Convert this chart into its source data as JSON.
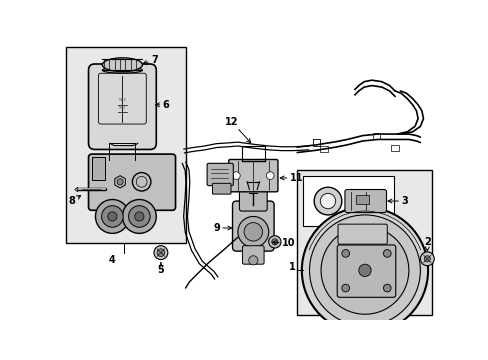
{
  "bg": "#ffffff",
  "lw_main": 1.2,
  "lw_thin": 0.7,
  "lw_thick": 1.5,
  "black": "#000000",
  "gray1": "#cccccc",
  "gray2": "#aaaaaa",
  "gray3": "#888888",
  "gray4": "#666666",
  "lightgray": "#e8e8e8",
  "dotgray": "#d0d0d0",
  "label_fs": 7,
  "label_fw": "bold"
}
